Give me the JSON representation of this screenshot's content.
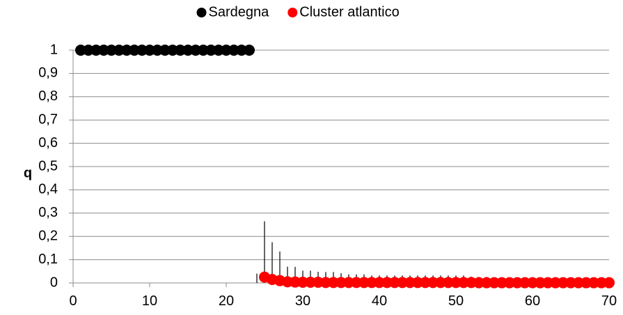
{
  "chart_data": {
    "type": "scatter",
    "title": "",
    "xlabel": "",
    "ylabel": "q",
    "xlim": [
      0,
      70
    ],
    "ylim": [
      0,
      1
    ],
    "x_ticks": [
      "0",
      "10",
      "20",
      "30",
      "40",
      "50",
      "60",
      "70"
    ],
    "y_ticks": [
      "0",
      "0,1",
      "0,2",
      "0,3",
      "0,4",
      "0,5",
      "0,6",
      "0,7",
      "0,8",
      "0,9",
      "1"
    ],
    "grid": "horizontal",
    "legend_position": "top",
    "series": [
      {
        "name": "Sardegna",
        "color": "#000000",
        "x": [
          1,
          2,
          3,
          4,
          5,
          6,
          7,
          8,
          9,
          10,
          11,
          12,
          13,
          14,
          15,
          16,
          17,
          18,
          19,
          20,
          21,
          22,
          23
        ],
        "y": [
          1,
          1,
          1,
          1,
          1,
          1,
          1,
          1,
          1,
          1,
          1,
          1,
          1,
          1,
          1,
          1,
          1,
          1,
          1,
          1,
          1,
          1,
          1
        ],
        "error_upper": [
          0,
          0,
          0,
          0,
          0,
          0,
          0,
          0,
          0,
          0,
          0,
          0,
          0,
          0,
          0,
          0,
          0,
          0,
          0,
          0,
          0,
          0,
          0
        ]
      },
      {
        "name": "Cluster atlantico",
        "color": "#ff0000",
        "x": [
          25,
          26,
          27,
          28,
          29,
          30,
          31,
          32,
          33,
          34,
          35,
          36,
          37,
          38,
          39,
          40,
          41,
          42,
          43,
          44,
          45,
          46,
          47,
          48,
          49,
          50,
          51,
          52,
          53,
          54,
          55,
          56,
          57,
          58,
          59,
          60,
          61,
          62,
          63,
          64,
          65,
          66,
          67,
          68,
          69,
          70
        ],
        "y": [
          0.025,
          0.015,
          0.01,
          0.005,
          0.004,
          0.003,
          0.003,
          0.003,
          0.002,
          0.002,
          0.002,
          0.002,
          0.002,
          0.002,
          0.002,
          0.002,
          0.002,
          0.002,
          0.002,
          0.002,
          0.002,
          0.002,
          0.002,
          0.002,
          0.002,
          0.002,
          0.002,
          0.002,
          0.001,
          0.001,
          0.001,
          0.001,
          0.001,
          0.001,
          0.001,
          0.001,
          0.001,
          0.001,
          0.001,
          0.001,
          0.001,
          0.001,
          0.001,
          0.001,
          0.001,
          0.001
        ],
        "error_upper": [
          0.24,
          0.16,
          0.125,
          0.065,
          0.065,
          0.05,
          0.05,
          0.045,
          0.045,
          0.045,
          0.04,
          0.035,
          0.035,
          0.035,
          0.03,
          0.03,
          0.03,
          0.03,
          0.03,
          0.03,
          0.03,
          0.03,
          0.03,
          0.03,
          0.03,
          0.03,
          0.03,
          0.025,
          0.025,
          0.025,
          0.02,
          0.02,
          0.02,
          0.02,
          0.02,
          0.02,
          0.02,
          0.02,
          0.02,
          0.02,
          0.02,
          0.02,
          0.02,
          0.02,
          0.02,
          0.02
        ]
      }
    ],
    "extra_error_bar": {
      "x": 24,
      "y": 0,
      "error_upper": 0.04
    }
  }
}
